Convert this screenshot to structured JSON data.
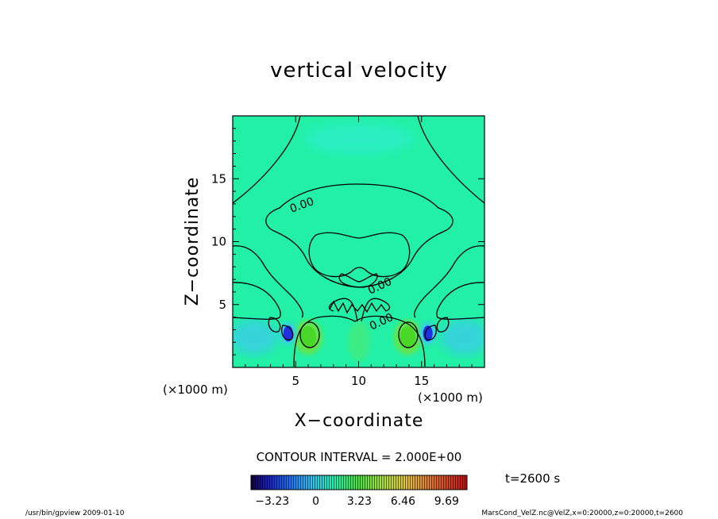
{
  "chart_data": {
    "type": "heatmap",
    "title": "vertical velocity",
    "xlabel": "X−coordinate",
    "ylabel": "Z−coordinate",
    "x_unit": "(×1000 m)",
    "y_unit": "(×1000 m)",
    "xlim": [
      0,
      20
    ],
    "ylim": [
      0,
      20
    ],
    "x_ticks": [
      5,
      10,
      15
    ],
    "x_tick_labels": [
      "5",
      "10",
      "15"
    ],
    "y_ticks": [
      5,
      10,
      15
    ],
    "y_tick_labels": [
      "5",
      "10",
      "15"
    ],
    "contour_labels": [
      "0.00",
      "0.00",
      "0.00"
    ],
    "contour_interval_text": "CONTOUR INTERVAL = 2.000E+00",
    "time_text": "t=2600 s",
    "colorbar": {
      "ticks": [
        -3.23,
        0,
        3.23,
        6.46,
        9.69
      ],
      "tick_labels": [
        "−3.23",
        "0",
        "3.23",
        "6.46",
        "9.69"
      ],
      "range": [
        -4.8,
        11.2
      ]
    },
    "features": [
      {
        "kind": "updraft",
        "x": 6.0,
        "z": 2.4,
        "value": 4.5
      },
      {
        "kind": "updraft",
        "x": 13.9,
        "z": 2.4,
        "value": 4.5
      },
      {
        "kind": "downdraft",
        "x": 4.4,
        "z": 2.7,
        "value": -3.5
      },
      {
        "kind": "downdraft",
        "x": 15.5,
        "z": 2.7,
        "value": -3.5
      }
    ]
  },
  "footer": {
    "left": "/usr/bin/gpview   2009-01-10",
    "right": "MarsCond_VelZ.nc@VelZ,x=0:20000,z=0:20000,t=2600"
  },
  "colors": {
    "background_field": "#22f0a6",
    "updraft": "#6ee23c",
    "downdraft": "#2030e0",
    "weak_down": "#3cc8f0",
    "contour": "#000000"
  }
}
